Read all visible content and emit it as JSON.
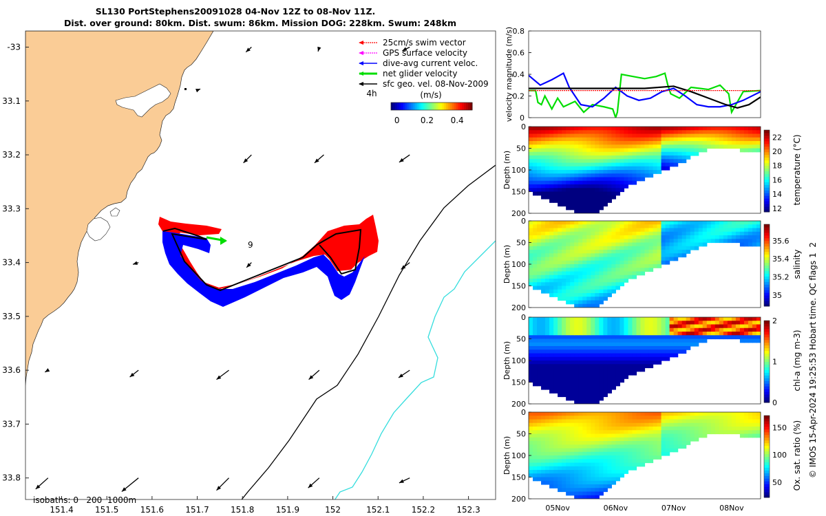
{
  "figure": {
    "title_line1": "SL130 PortStephens20091028 04-Nov 12Z to 08-Nov 11Z.",
    "title_line2": "Dist. over ground: 80km. Dist. swum: 86km. Mission DOG: 228km. Swum: 248km",
    "credit": "© IMOS 15-Apr-2024 19:25:53 Hobart time. QC flags 1  2"
  },
  "colors": {
    "land": "#FACC96",
    "swim_vector": "#FF0000",
    "gps_velocity": "#FF00FF",
    "dive_avg": "#0000FF",
    "net_glider": "#00DD00",
    "sfc_geo": "#000000",
    "isobath_200": "#000000",
    "isobath_1000": "#33DDDD"
  },
  "chart_data": [
    {
      "type": "scatter",
      "name": "map",
      "xlim": [
        151.32,
        152.36
      ],
      "ylim": [
        -33.84,
        -32.97
      ],
      "xticks": [
        "151.4",
        "151.5",
        "151.6",
        "151.7",
        "151.8",
        "151.9",
        "152",
        "152.1",
        "152.2",
        "152.3"
      ],
      "yticks": [
        "-33",
        "33.1",
        "33.2",
        "33.3",
        "33.4",
        "33.5",
        "33.6",
        "33.7",
        "33.8"
      ],
      "legend": [
        {
          "label": "25cm/s swim vector",
          "color": "#FF0000"
        },
        {
          "label": "GPS surface velocity",
          "color": "#FF00FF"
        },
        {
          "label": "dive-avg current veloc.",
          "color": "#0000FF"
        },
        {
          "label": "net glider velocity",
          "color": "#00DD00"
        },
        {
          "label": "sfc geo. vel. 08-Nov-2009",
          "color": "#000000"
        }
      ],
      "legend_position": "top-right",
      "interval_label": "4h",
      "colorbar_label": "(m/s)",
      "colorbar_ticks": [
        "0",
        "0.2",
        "0.4"
      ],
      "colorbar_range": [
        -0.04,
        0.5
      ],
      "track_label": "9",
      "isobath_text": "isobaths: 0   200  1000m",
      "track": [
        {
          "x": 151.62,
          "y": -33.36
        },
        {
          "x": 151.67,
          "y": -33.34
        },
        {
          "x": 151.7,
          "y": -33.35
        },
        {
          "x": 151.64,
          "y": -33.36
        },
        {
          "x": 151.68,
          "y": -33.43
        },
        {
          "x": 151.76,
          "y": -33.46
        },
        {
          "x": 151.85,
          "y": -33.44
        },
        {
          "x": 151.91,
          "y": -33.41
        },
        {
          "x": 151.97,
          "y": -33.38
        },
        {
          "x": 152.05,
          "y": -33.35
        },
        {
          "x": 152.0,
          "y": -33.44
        },
        {
          "x": 151.98,
          "y": -33.44
        },
        {
          "x": 151.97,
          "y": -33.39
        }
      ],
      "geo_vectors": [
        {
          "x": 151.7,
          "y": -33.08,
          "u": 0.05,
          "v": 0.02
        },
        {
          "x": 151.82,
          "y": -33.0,
          "u": -0.09,
          "v": -0.08
        },
        {
          "x": 151.97,
          "y": -33.0,
          "u": -0.02,
          "v": -0.07
        },
        {
          "x": 152.17,
          "y": -33.0,
          "u": -0.12,
          "v": -0.06
        },
        {
          "x": 151.82,
          "y": -33.2,
          "u": -0.13,
          "v": -0.13
        },
        {
          "x": 151.98,
          "y": -33.2,
          "u": -0.15,
          "v": -0.13
        },
        {
          "x": 152.17,
          "y": -33.2,
          "u": -0.17,
          "v": -0.12
        },
        {
          "x": 152.17,
          "y": -33.4,
          "u": -0.14,
          "v": -0.11
        },
        {
          "x": 151.82,
          "y": -33.4,
          "u": -0.08,
          "v": -0.08
        },
        {
          "x": 151.57,
          "y": -33.4,
          "u": -0.09,
          "v": -0.03
        },
        {
          "x": 151.57,
          "y": -33.6,
          "u": -0.14,
          "v": -0.11
        },
        {
          "x": 151.77,
          "y": -33.6,
          "u": -0.2,
          "v": -0.15
        },
        {
          "x": 151.97,
          "y": -33.6,
          "u": -0.17,
          "v": -0.15
        },
        {
          "x": 152.17,
          "y": -33.6,
          "u": -0.18,
          "v": -0.12
        },
        {
          "x": 151.37,
          "y": -33.6,
          "u": -0.05,
          "v": -0.03
        },
        {
          "x": 151.37,
          "y": -33.8,
          "u": -0.2,
          "v": -0.18
        },
        {
          "x": 151.57,
          "y": -33.8,
          "u": -0.27,
          "v": -0.22
        },
        {
          "x": 151.77,
          "y": -33.8,
          "u": -0.2,
          "v": -0.2
        },
        {
          "x": 151.97,
          "y": -33.8,
          "u": -0.18,
          "v": -0.16
        },
        {
          "x": 152.17,
          "y": -33.8,
          "u": -0.17,
          "v": -0.08
        }
      ]
    },
    {
      "type": "line",
      "name": "velocity",
      "ylabel": "velocity magnitude (m/s)",
      "ylim": [
        0,
        0.8
      ],
      "yticks": [
        "0",
        "0.2",
        "0.4",
        "0.6",
        "0.8"
      ],
      "xlim": [
        4.5,
        8.5
      ],
      "series": [
        {
          "color": "#00DD00",
          "x": [
            4.5,
            4.62,
            4.66,
            4.72,
            4.78,
            4.9,
            5.0,
            5.1,
            5.3,
            5.45,
            5.6,
            5.8,
            5.95,
            6.0,
            6.03,
            6.1,
            6.3,
            6.5,
            6.7,
            6.85,
            6.9,
            6.95,
            7.1,
            7.3,
            7.6,
            7.8,
            7.95,
            8.0,
            8.2,
            8.5
          ],
          "y": [
            0.25,
            0.25,
            0.14,
            0.12,
            0.2,
            0.08,
            0.18,
            0.1,
            0.15,
            0.05,
            0.12,
            0.1,
            0.08,
            0.0,
            0.05,
            0.4,
            0.38,
            0.36,
            0.38,
            0.41,
            0.3,
            0.22,
            0.18,
            0.28,
            0.26,
            0.3,
            0.22,
            0.05,
            0.24,
            0.25
          ]
        },
        {
          "color": "#0000FF",
          "x": [
            4.5,
            4.7,
            4.9,
            5.0,
            5.1,
            5.2,
            5.4,
            5.6,
            5.8,
            6.0,
            6.2,
            6.4,
            6.6,
            6.8,
            7.0,
            7.2,
            7.4,
            7.6,
            7.8,
            8.0,
            8.2,
            8.5
          ],
          "y": [
            0.39,
            0.3,
            0.35,
            0.38,
            0.41,
            0.28,
            0.12,
            0.1,
            0.18,
            0.28,
            0.2,
            0.16,
            0.18,
            0.24,
            0.27,
            0.2,
            0.12,
            0.1,
            0.1,
            0.12,
            0.16,
            0.24
          ]
        },
        {
          "color": "#000000",
          "x": [
            4.5,
            5.0,
            5.5,
            6.0,
            6.5,
            7.0,
            7.3,
            7.6,
            7.9,
            8.1,
            8.3,
            8.5
          ],
          "y": [
            0.27,
            0.27,
            0.27,
            0.27,
            0.27,
            0.29,
            0.24,
            0.18,
            0.12,
            0.09,
            0.12,
            0.19
          ]
        },
        {
          "color": "#FF0000",
          "x": [
            4.5,
            8.5
          ],
          "y": [
            0.25,
            0.25
          ]
        }
      ]
    },
    {
      "type": "heatmap",
      "name": "temperature",
      "ylabel": "Depth (m)",
      "clabel": "temperature (°C)",
      "clim": [
        11.5,
        23
      ],
      "cticks": [
        "12",
        "14",
        "16",
        "18",
        "20",
        "22"
      ],
      "yticks": [
        "0",
        "50",
        "100",
        "150",
        "200"
      ]
    },
    {
      "type": "heatmap",
      "name": "salinity",
      "ylabel": "Depth (m)",
      "clabel": "salinity",
      "clim": [
        34.88,
        35.78
      ],
      "cticks": [
        "35",
        "35.2",
        "35.4",
        "35.6"
      ],
      "yticks": [
        "0",
        "50",
        "100",
        "150",
        "200"
      ]
    },
    {
      "type": "heatmap",
      "name": "chlorophyll",
      "ylabel": "Depth (m)",
      "clabel": "chl-a (mg m-3)",
      "clim": [
        0,
        2
      ],
      "cticks": [
        "0",
        "1",
        "2"
      ],
      "yticks": [
        "0",
        "50",
        "100",
        "150",
        "200"
      ]
    },
    {
      "type": "heatmap",
      "name": "oxygen",
      "ylabel": "Depth (m)",
      "clabel": "Ox. sat. ratio (%)",
      "clim": [
        22,
        172
      ],
      "cticks": [
        "50",
        "100",
        "150"
      ],
      "yticks": [
        "0",
        "50",
        "100",
        "150",
        "200"
      ],
      "xticks": [
        "05Nov",
        "06Nov",
        "07Nov",
        "08Nov"
      ]
    }
  ]
}
